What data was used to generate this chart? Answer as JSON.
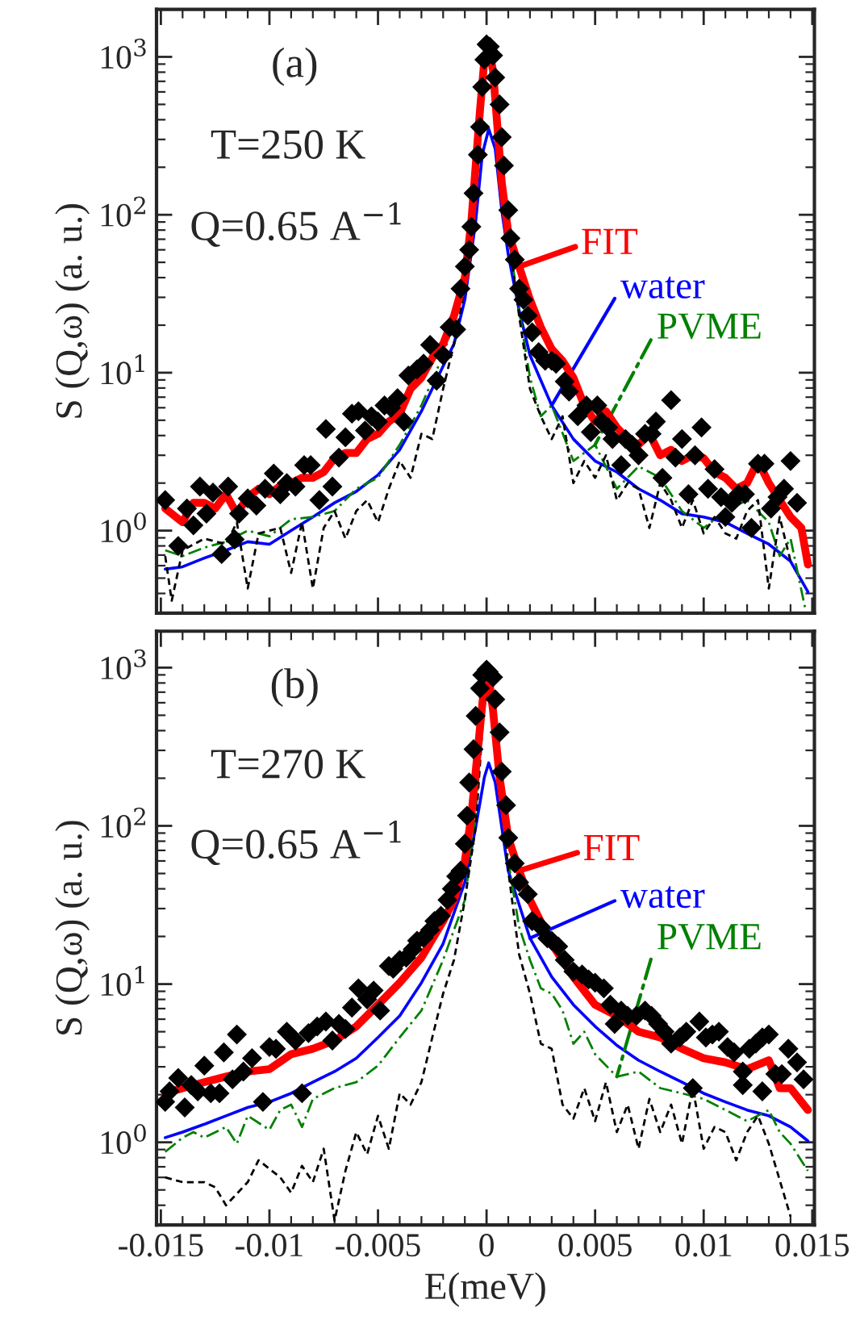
{
  "chart_data": [
    {
      "type": "line",
      "ylabel": "S (Q,ω) (a. u.)",
      "log": "y",
      "xlim": [
        -0.0152,
        0.0151
      ],
      "ylim": [
        0.3,
        2000
      ],
      "xticks": [
        -0.015,
        -0.01,
        -0.005,
        0,
        0.005,
        0.01,
        0.015
      ],
      "yticks": [
        {
          "value": 1,
          "label": "10$^{0}$"
        },
        {
          "value": 10,
          "label": "10$^{1}$"
        },
        {
          "value": 100,
          "label": "10$^{2}$"
        },
        {
          "value": 1000,
          "label": "10$^{3}$"
        }
      ],
      "tick_labels": "y",
      "grid": false,
      "legend": "right",
      "annotations": [
        "(a)",
        "T=250 K",
        "Q=0.65 A$^{−1}$"
      ],
      "series": [
        {
          "type": "scatter",
          "marker": "diamond",
          "color": "#000000",
          "x": [
            -0.0148,
            -0.0142,
            -0.0138,
            -0.0135,
            -0.0132,
            -0.0129,
            -0.0126,
            -0.0122,
            -0.0119,
            -0.0116,
            -0.0114,
            -0.011,
            -0.0106,
            -0.0102,
            -0.0098,
            -0.0095,
            -0.0092,
            -0.0088,
            -0.0084,
            -0.0081,
            -0.0077,
            -0.0074,
            -0.0071,
            -0.0068,
            -0.0065,
            -0.0062,
            -0.0059,
            -0.0056,
            -0.0053,
            -0.005,
            -0.0047,
            -0.0044,
            -0.0041,
            -0.0038,
            -0.0036,
            -0.0032,
            -0.0029,
            -0.0026,
            -0.0023,
            -0.002,
            -0.0017,
            -0.0014,
            -0.0012,
            -0.001,
            -0.0008,
            -0.0007,
            -0.0006,
            -0.0004,
            -0.0003,
            -0.0002,
            -0.0001,
            0,
            0.00015,
            0.0003,
            0.0004,
            0.0006,
            0.0007,
            0.0008,
            0.001,
            0.0011,
            0.0013,
            0.0015,
            0.0017,
            0.0019,
            0.0021,
            0.0024,
            0.0027,
            0.003,
            0.0032,
            0.0036,
            0.0038,
            0.0042,
            0.0046,
            0.0048,
            0.0051,
            0.0053,
            0.0056,
            0.0058,
            0.0062,
            0.0064,
            0.0067,
            0.007,
            0.0073,
            0.0076,
            0.0078,
            0.0081,
            0.0085,
            0.0087,
            0.009,
            0.0093,
            0.0096,
            0.0099,
            0.0102,
            0.0105,
            0.0108,
            0.011,
            0.0113,
            0.0116,
            0.0119,
            0.0122,
            0.0125,
            0.0128,
            0.0131,
            0.0134,
            0.0137,
            0.014,
            0.0143
          ],
          "values": [
            1.56,
            0.8,
            1.38,
            1.08,
            1.9,
            1.28,
            1.74,
            0.71,
            1.9,
            0.88,
            1.28,
            1.6,
            1.44,
            1.84,
            2.3,
            1.7,
            2.0,
            1.9,
            2.6,
            2.6,
            1.56,
            4.4,
            1.9,
            2.9,
            3.9,
            5.5,
            5.7,
            4.3,
            5.3,
            4.9,
            6.2,
            6.0,
            6.9,
            4.9,
            9.6,
            10.5,
            11.4,
            15,
            8.9,
            12.9,
            19.4,
            18.8,
            34,
            47,
            60,
            84,
            137,
            240,
            360,
            645,
            960,
            1200,
            1160,
            1020,
            740,
            500,
            310,
            205,
            107,
            71,
            52,
            34,
            29,
            23,
            18,
            13.5,
            11.9,
            11.9,
            11.4,
            8.8,
            7.6,
            5.3,
            6.2,
            4.2,
            6.2,
            4.9,
            4.5,
            3.8,
            2.6,
            3.8,
            3.5,
            3.0,
            4.1,
            4.1,
            4.9,
            2.16,
            6.7,
            2.9,
            3.8,
            1.7,
            3.0,
            4.5,
            1.84,
            2.45,
            1.63,
            1.22,
            1.5,
            1.7,
            1.7,
            1.04,
            2.65,
            2.65,
            1.38,
            1.63,
            1.84,
            2.76,
            1.5
          ]
        },
        {
          "name": "FIT",
          "color": "#ff0000",
          "line_style": "solid",
          "x": [
            -0.0148,
            -0.014,
            -0.0135,
            -0.013,
            -0.0125,
            -0.012,
            -0.0115,
            -0.011,
            -0.0105,
            -0.01,
            -0.0095,
            -0.009,
            -0.0085,
            -0.008,
            -0.0075,
            -0.007,
            -0.0065,
            -0.006,
            -0.0055,
            -0.005,
            -0.0045,
            -0.004,
            -0.0035,
            -0.003,
            -0.0025,
            -0.002,
            -0.0015,
            -0.001,
            -0.0007,
            -0.0005,
            -0.0003,
            -0.0001,
            0.0001,
            0.0003,
            0.0005,
            0.0007,
            0.001,
            0.0015,
            0.002,
            0.0025,
            0.003,
            0.0035,
            0.004,
            0.0045,
            0.005,
            0.0055,
            0.006,
            0.0065,
            0.007,
            0.0075,
            0.008,
            0.0085,
            0.009,
            0.0095,
            0.01,
            0.0105,
            0.011,
            0.0115,
            0.012,
            0.0125,
            0.013,
            0.0135,
            0.014,
            0.0145,
            0.0148
          ],
          "values": [
            1.38,
            1.13,
            1.5,
            1.5,
            1.38,
            1.7,
            1.28,
            1.63,
            1.84,
            1.7,
            1.92,
            2.0,
            2.16,
            2.16,
            2.35,
            2.88,
            3.1,
            3.1,
            3.8,
            4.1,
            4.9,
            5.5,
            7.9,
            9.3,
            12.4,
            15.2,
            22.9,
            40,
            91,
            205,
            463,
            960,
            1130,
            815,
            360,
            160,
            77,
            47,
            29,
            19.4,
            14.1,
            11.9,
            9.3,
            6.2,
            4.9,
            5.7,
            4.5,
            3.8,
            3.5,
            4.1,
            3.0,
            3.25,
            2.76,
            3.0,
            2.88,
            2.35,
            2.16,
            1.84,
            2.0,
            2.76,
            2.0,
            1.56,
            1.22,
            1.04,
            0.61
          ]
        },
        {
          "name": "water",
          "color": "#0000ff",
          "line_style": "solid",
          "x": [
            -0.0148,
            -0.014,
            -0.013,
            -0.012,
            -0.011,
            -0.01,
            -0.009,
            -0.008,
            -0.007,
            -0.006,
            -0.005,
            -0.004,
            -0.003,
            -0.002,
            -0.0015,
            -0.001,
            -0.0005,
            -0.0002,
            0.0001,
            0.0004,
            0.0007,
            0.001,
            0.0015,
            0.002,
            0.003,
            0.004,
            0.005,
            0.006,
            0.007,
            0.008,
            0.009,
            0.01,
            0.011,
            0.012,
            0.013,
            0.014,
            0.0148
          ],
          "values": [
            0.57,
            0.59,
            0.67,
            0.75,
            0.85,
            0.82,
            1.0,
            1.22,
            1.5,
            1.77,
            2.25,
            3.25,
            5.7,
            11,
            15.2,
            29,
            91,
            240,
            350,
            262,
            107,
            56,
            24.8,
            12.9,
            6.2,
            3.8,
            2.76,
            2.35,
            1.84,
            1.56,
            1.28,
            1.22,
            1.13,
            0.96,
            0.82,
            0.64,
            0.41
          ]
        },
        {
          "name": "PVME",
          "color": "#008000",
          "line_style": "dashdot",
          "x": [
            -0.0148,
            -0.014,
            -0.013,
            -0.012,
            -0.011,
            -0.01,
            -0.009,
            -0.008,
            -0.007,
            -0.006,
            -0.005,
            -0.004,
            -0.003,
            -0.002,
            -0.001,
            -0.0005,
            -0.0001,
            0.0002,
            0.0005,
            0.001,
            0.0015,
            0.002,
            0.0025,
            0.003,
            0.004,
            0.005,
            0.006,
            0.007,
            0.008,
            0.009,
            0.01,
            0.011,
            0.012,
            0.013,
            0.0135,
            0.014,
            0.0147
          ],
          "values": [
            0.75,
            0.69,
            0.78,
            0.85,
            1.0,
            0.92,
            1.18,
            1.22,
            1.33,
            1.84,
            2.16,
            3.5,
            6.2,
            12.9,
            34,
            137,
            890,
            960,
            390,
            77,
            24.8,
            9.3,
            5.3,
            6.2,
            2.76,
            3.5,
            1.84,
            2.55,
            2.16,
            1.33,
            1.04,
            1.33,
            1.56,
            1.13,
            0.69,
            0.89,
            0.31
          ]
        },
        {
          "color": "#000000",
          "line_style": "dashed",
          "x": [
            -0.0148,
            -0.0145,
            -0.014,
            -0.013,
            -0.012,
            -0.0115,
            -0.011,
            -0.0105,
            -0.0095,
            -0.009,
            -0.0085,
            -0.008,
            -0.0075,
            -0.007,
            -0.0065,
            -0.006,
            -0.0055,
            -0.005,
            -0.0045,
            -0.004,
            -0.0035,
            -0.003,
            -0.0025,
            -0.002,
            -0.0015,
            -0.001,
            -0.0005,
            -0.0001,
            0.0002,
            0.0005,
            0.001,
            0.0015,
            0.002,
            0.0025,
            0.003,
            0.0035,
            0.004,
            0.0045,
            0.005,
            0.0055,
            0.006,
            0.0065,
            0.007,
            0.0075,
            0.008,
            0.0085,
            0.009,
            0.0095,
            0.01,
            0.0105,
            0.011,
            0.0115,
            0.012,
            0.0125,
            0.013,
            0.0135,
            0.014
          ],
          "values": [
            0.69,
            0.36,
            0.75,
            0.89,
            0.82,
            1.13,
            0.43,
            0.96,
            1.04,
            0.54,
            1.13,
            0.43,
            1.04,
            1.33,
            0.89,
            1.33,
            1.56,
            1.13,
            1.84,
            2.76,
            2.16,
            4.1,
            3.8,
            7.9,
            15.2,
            34,
            137,
            850,
            920,
            360,
            77,
            22.9,
            7.9,
            5.3,
            3.8,
            5.3,
            2.0,
            2.76,
            2.16,
            3.0,
            1.56,
            2.0,
            1.84,
            1.04,
            2.0,
            1.56,
            1.04,
            1.56,
            0.96,
            1.22,
            0.96,
            0.89,
            1.33,
            1.56,
            0.43,
            1.22,
            0.64
          ]
        }
      ]
    },
    {
      "type": "line",
      "xlabel": "E(meV)",
      "ylabel": "S (Q,ω) (a. u.)",
      "log": "y",
      "xlim": [
        -0.0152,
        0.0151
      ],
      "ylim": [
        0.3,
        1700
      ],
      "xticks": [
        -0.015,
        -0.01,
        -0.005,
        0,
        0.005,
        0.01,
        0.015
      ],
      "yticks": [
        {
          "value": 1,
          "label": "10$^{0}$"
        },
        {
          "value": 10,
          "label": "10$^{1}$"
        },
        {
          "value": 100,
          "label": "10$^{2}$"
        },
        {
          "value": 1000,
          "label": "10$^{3}$"
        }
      ],
      "grid": false,
      "legend": "right",
      "annotations": [
        "(b)",
        "T=270 K",
        "Q=0.65 A$^{−1}$"
      ],
      "series": [
        {
          "type": "scatter",
          "marker": "diamond",
          "color": "#000000",
          "x": [
            -0.0148,
            -0.0146,
            -0.0142,
            -0.0139,
            -0.0136,
            -0.0133,
            -0.013,
            -0.0127,
            -0.0123,
            -0.0121,
            -0.0117,
            -0.0115,
            -0.0112,
            -0.0108,
            -0.0103,
            -0.01,
            -0.0097,
            -0.0092,
            -0.0088,
            -0.0085,
            -0.0082,
            -0.0078,
            -0.0074,
            -0.0071,
            -0.0068,
            -0.0065,
            -0.0062,
            -0.0059,
            -0.0055,
            -0.0052,
            -0.0049,
            -0.0045,
            -0.0043,
            -0.004,
            -0.0037,
            -0.0034,
            -0.0032,
            -0.0029,
            -0.0026,
            -0.0024,
            -0.0021,
            -0.0018,
            -0.0016,
            -0.0014,
            -0.0012,
            -0.001,
            -0.0009,
            -0.0008,
            -0.0006,
            -0.0005,
            -0.0003,
            -0.0002,
            0,
            0.0001,
            0.0003,
            0.0004,
            0.0006,
            0.0007,
            0.0009,
            0.001,
            0.0013,
            0.0015,
            0.0019,
            0.0021,
            0.0025,
            0.0028,
            0.003,
            0.0033,
            0.0036,
            0.004,
            0.0044,
            0.0047,
            0.005,
            0.0054,
            0.0057,
            0.0059,
            0.0062,
            0.0065,
            0.0069,
            0.0073,
            0.0076,
            0.0079,
            0.0082,
            0.0085,
            0.0089,
            0.0092,
            0.0095,
            0.0098,
            0.0101,
            0.0104,
            0.0107,
            0.0111,
            0.0114,
            0.0118,
            0.0118,
            0.0121,
            0.0124,
            0.0127,
            0.0127,
            0.013,
            0.0133,
            0.0136,
            0.0139,
            0.0143,
            0.0146
          ],
          "values": [
            1.8,
            2.1,
            2.55,
            1.66,
            2.3,
            2.1,
            3.05,
            2.04,
            2.04,
            3.7,
            2.5,
            4.8,
            2.8,
            3.4,
            1.8,
            4.0,
            3.9,
            5.0,
            4.4,
            2.04,
            4.9,
            5.4,
            5.8,
            4.4,
            5.6,
            5.2,
            7.1,
            9.4,
            8.0,
            9.1,
            6.8,
            13,
            12.5,
            14.2,
            14.7,
            16.6,
            18.8,
            19.6,
            22,
            25,
            27,
            34,
            40,
            48,
            52,
            77,
            116,
            188,
            305,
            495,
            740,
            900,
            970,
            940,
            870,
            630,
            390,
            220,
            135,
            84,
            58,
            44,
            37,
            25,
            23,
            19.5,
            18.8,
            17.3,
            14.2,
            12,
            11.5,
            10.7,
            10.2,
            9.4,
            7.4,
            5.6,
            6.8,
            6.3,
            6.3,
            6.8,
            6.3,
            5.6,
            5.0,
            4.2,
            4.6,
            5.0,
            2.2,
            5.8,
            4.6,
            4.8,
            5.0,
            4.0,
            3.7,
            2.8,
            2.3,
            3.9,
            4.2,
            4.6,
            2.1,
            4.8,
            2.7,
            2.7,
            3.9,
            3.2,
            2.5
          ]
        },
        {
          "name": "FIT",
          "color": "#ff0000",
          "line_style": "solid",
          "x": [
            -0.0148,
            -0.014,
            -0.013,
            -0.012,
            -0.011,
            -0.01,
            -0.009,
            -0.008,
            -0.007,
            -0.006,
            -0.005,
            -0.004,
            -0.003,
            -0.002,
            -0.0015,
            -0.001,
            -0.0007,
            -0.0004,
            -0.0001,
            0.0001,
            0.0003,
            0.0006,
            0.001,
            0.0015,
            0.002,
            0.003,
            0.004,
            0.005,
            0.006,
            0.007,
            0.008,
            0.009,
            0.01,
            0.011,
            0.012,
            0.013,
            0.0135,
            0.014,
            0.0148
          ],
          "values": [
            2.04,
            2.2,
            2.4,
            2.6,
            2.8,
            2.9,
            3.6,
            3.9,
            4.4,
            5.4,
            7.4,
            10.2,
            14.7,
            25,
            34,
            60,
            116,
            305,
            800,
            870,
            535,
            203,
            84,
            52,
            34,
            18,
            11.1,
            7.4,
            6.3,
            5.0,
            4.6,
            3.9,
            3.4,
            3.2,
            2.9,
            3.3,
            2.2,
            2.2,
            1.6
          ]
        },
        {
          "name": "water",
          "color": "#0000ff",
          "line_style": "solid",
          "x": [
            -0.0148,
            -0.014,
            -0.013,
            -0.012,
            -0.011,
            -0.01,
            -0.009,
            -0.008,
            -0.007,
            -0.006,
            -0.005,
            -0.004,
            -0.003,
            -0.002,
            -0.001,
            -0.0005,
            -0.0001,
            0.0001,
            0.0004,
            0.0007,
            0.001,
            0.002,
            0.003,
            0.004,
            0.005,
            0.006,
            0.007,
            0.008,
            0.009,
            0.01,
            0.011,
            0.012,
            0.013,
            0.014,
            0.0148
          ],
          "values": [
            1.07,
            1.16,
            1.3,
            1.47,
            1.66,
            1.8,
            2.04,
            2.4,
            2.8,
            3.4,
            4.6,
            6.3,
            10.2,
            18,
            44,
            98,
            203,
            250,
            188,
            98,
            52,
            19.5,
            11.1,
            7.4,
            5.4,
            4.1,
            3.3,
            2.8,
            2.4,
            2.04,
            1.8,
            1.6,
            1.47,
            1.25,
            1.02
          ]
        },
        {
          "name": "PVME",
          "color": "#008000",
          "line_style": "dashdot",
          "x": [
            -0.0148,
            -0.014,
            -0.0135,
            -0.013,
            -0.012,
            -0.0115,
            -0.011,
            -0.01,
            -0.0095,
            -0.009,
            -0.0085,
            -0.008,
            -0.007,
            -0.006,
            -0.005,
            -0.004,
            -0.003,
            -0.002,
            -0.001,
            -0.0005,
            -0.0001,
            0.0002,
            0.0005,
            0.001,
            0.0015,
            0.002,
            0.0025,
            0.003,
            0.0035,
            0.004,
            0.0045,
            0.005,
            0.006,
            0.007,
            0.008,
            0.009,
            0.01,
            0.011,
            0.012,
            0.013,
            0.0135,
            0.014,
            0.0148
          ],
          "values": [
            0.87,
            1.07,
            1.16,
            1.07,
            1.25,
            0.98,
            1.47,
            1.2,
            1.6,
            1.73,
            1.25,
            1.88,
            2.2,
            2.4,
            3.05,
            4.6,
            6.8,
            14.2,
            34,
            116,
            680,
            740,
            260,
            60,
            23,
            14.2,
            9.4,
            8.7,
            6.8,
            4.2,
            5.0,
            3.6,
            2.6,
            2.8,
            2.2,
            2.04,
            1.88,
            1.6,
            1.36,
            1.6,
            1.16,
            0.98,
            0.66
          ]
        },
        {
          "color": "#000000",
          "line_style": "dashed",
          "x": [
            -0.0148,
            -0.014,
            -0.013,
            -0.0125,
            -0.012,
            -0.011,
            -0.0105,
            -0.0095,
            -0.009,
            -0.0085,
            -0.008,
            -0.0075,
            -0.007,
            -0.0065,
            -0.006,
            -0.0055,
            -0.005,
            -0.0045,
            -0.004,
            -0.0035,
            -0.003,
            -0.0025,
            -0.002,
            -0.0015,
            -0.001,
            -0.0005,
            -0.0001,
            0.0002,
            0.0005,
            0.001,
            0.0015,
            0.002,
            0.0025,
            0.003,
            0.0035,
            0.004,
            0.0045,
            0.005,
            0.0055,
            0.006,
            0.0065,
            0.007,
            0.0075,
            0.008,
            0.0085,
            0.009,
            0.0095,
            0.01,
            0.0105,
            0.011,
            0.0115,
            0.012,
            0.0125,
            0.013,
            0.014
          ],
          "values": [
            0.6,
            0.56,
            0.56,
            0.52,
            0.4,
            0.56,
            0.77,
            0.6,
            0.48,
            0.71,
            0.56,
            0.91,
            0.32,
            0.66,
            1.16,
            0.84,
            1.47,
            0.91,
            2.04,
            1.73,
            2.4,
            4.6,
            8.7,
            14.2,
            34,
            98,
            630,
            680,
            260,
            52,
            15.4,
            8.7,
            4.2,
            3.9,
            1.73,
            1.41,
            2.2,
            1.36,
            2.4,
            1.16,
            1.73,
            0.91,
            1.88,
            1.16,
            1.73,
            0.98,
            2.2,
            0.91,
            1.25,
            1.16,
            0.77,
            1.16,
            1.47,
            0.98,
            0.34
          ]
        }
      ]
    }
  ]
}
